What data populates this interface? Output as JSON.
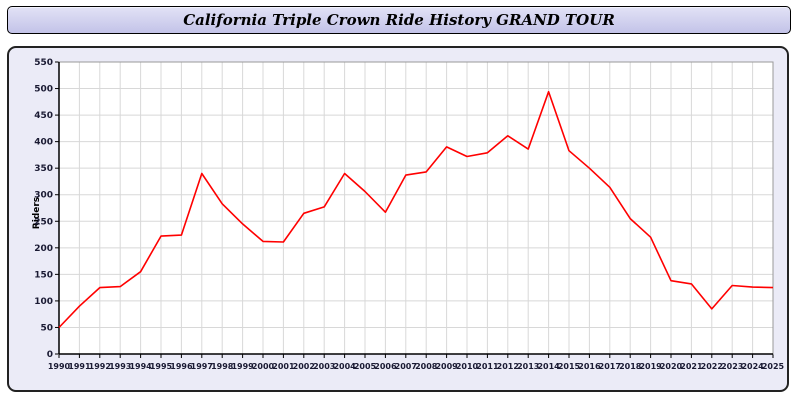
{
  "header": {
    "title": "California Triple Crown Ride History GRAND TOUR"
  },
  "chart_data": {
    "type": "line",
    "title": "California Triple Crown Ride History GRAND TOUR",
    "xlabel": "",
    "ylabel": "Riders",
    "ylim": [
      0,
      550
    ],
    "ytick_step": 50,
    "grid": true,
    "legend_position": "none",
    "x": [
      1990,
      1991,
      1992,
      1993,
      1994,
      1995,
      1996,
      1997,
      1998,
      1999,
      2000,
      2001,
      2002,
      2003,
      2004,
      2005,
      2006,
      2007,
      2008,
      2009,
      2010,
      2011,
      2012,
      2013,
      2014,
      2015,
      2016,
      2017,
      2018,
      2019,
      2020,
      2021,
      2022,
      2023,
      2024,
      2025
    ],
    "series": [
      {
        "name": "Riders",
        "color": "#ff0000",
        "values": [
          50,
          90,
          125,
          127,
          155,
          222,
          224,
          340,
          283,
          245,
          212,
          211,
          265,
          277,
          340,
          306,
          267,
          337,
          343,
          390,
          372,
          379,
          411,
          386,
          494,
          383,
          350,
          314,
          255,
          220,
          138,
          132,
          85,
          129,
          126,
          125
        ]
      }
    ],
    "colors": {
      "plot_bg": "#ffffff",
      "panel_bg": "#ebebf7",
      "titlebar_bg": "#ccccee",
      "grid": "#d8d8d8",
      "axis": "#000000",
      "tick_label": "#1a1a33",
      "line": "#ff0000"
    }
  }
}
